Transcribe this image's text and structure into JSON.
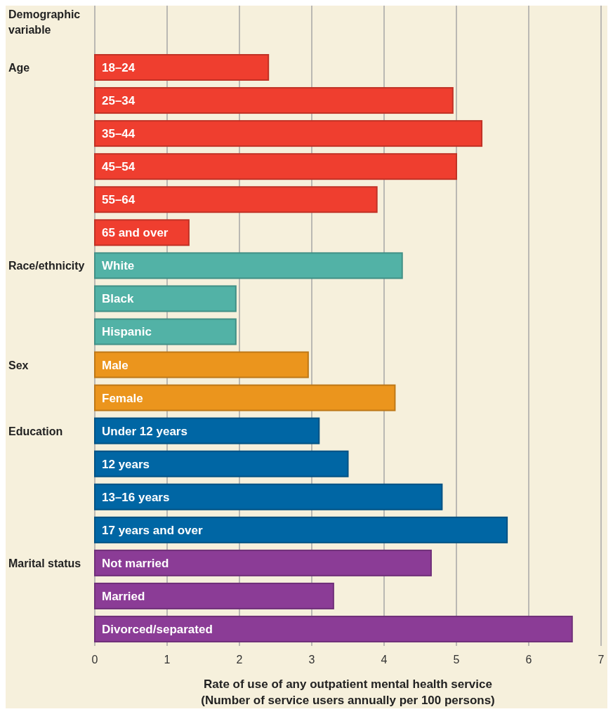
{
  "chart_data": {
    "type": "bar",
    "orientation": "horizontal",
    "ylabel": "Demographic variable",
    "xlabel": "Rate of use of any outpatient mental health service\n(Number of service users annually per 100 persons)",
    "categories": [
      "18–24",
      "25–34",
      "35–44",
      "45–54",
      "55–64",
      "65 and over",
      "White",
      "Black",
      "Hispanic",
      "Male",
      "Female",
      "Under 12 years",
      "12 years",
      "13–16 years",
      "17 years and over",
      "Not married",
      "Married",
      "Divorced/separated"
    ],
    "values": [
      2.4,
      4.95,
      5.35,
      5.0,
      3.9,
      1.3,
      4.25,
      1.95,
      1.95,
      2.95,
      4.15,
      3.1,
      3.5,
      4.8,
      5.7,
      4.65,
      3.3,
      6.6
    ],
    "colors": [
      "#ef3e2f",
      "#ef3e2f",
      "#ef3e2f",
      "#ef3e2f",
      "#ef3e2f",
      "#ef3e2f",
      "#52b2a6",
      "#52b2a6",
      "#52b2a6",
      "#eb951d",
      "#eb951d",
      "#0066a4",
      "#0066a4",
      "#0066a4",
      "#0066a4",
      "#8b3c96",
      "#8b3c96",
      "#8b3c96"
    ],
    "xlim": [
      0,
      7
    ],
    "xticks": [
      0,
      1,
      2,
      3,
      4,
      5,
      6,
      7
    ],
    "grid": "x",
    "annotations": [
      "Age",
      "Race/ethnicity",
      "Sex",
      "Education",
      "Marital status"
    ]
  }
}
